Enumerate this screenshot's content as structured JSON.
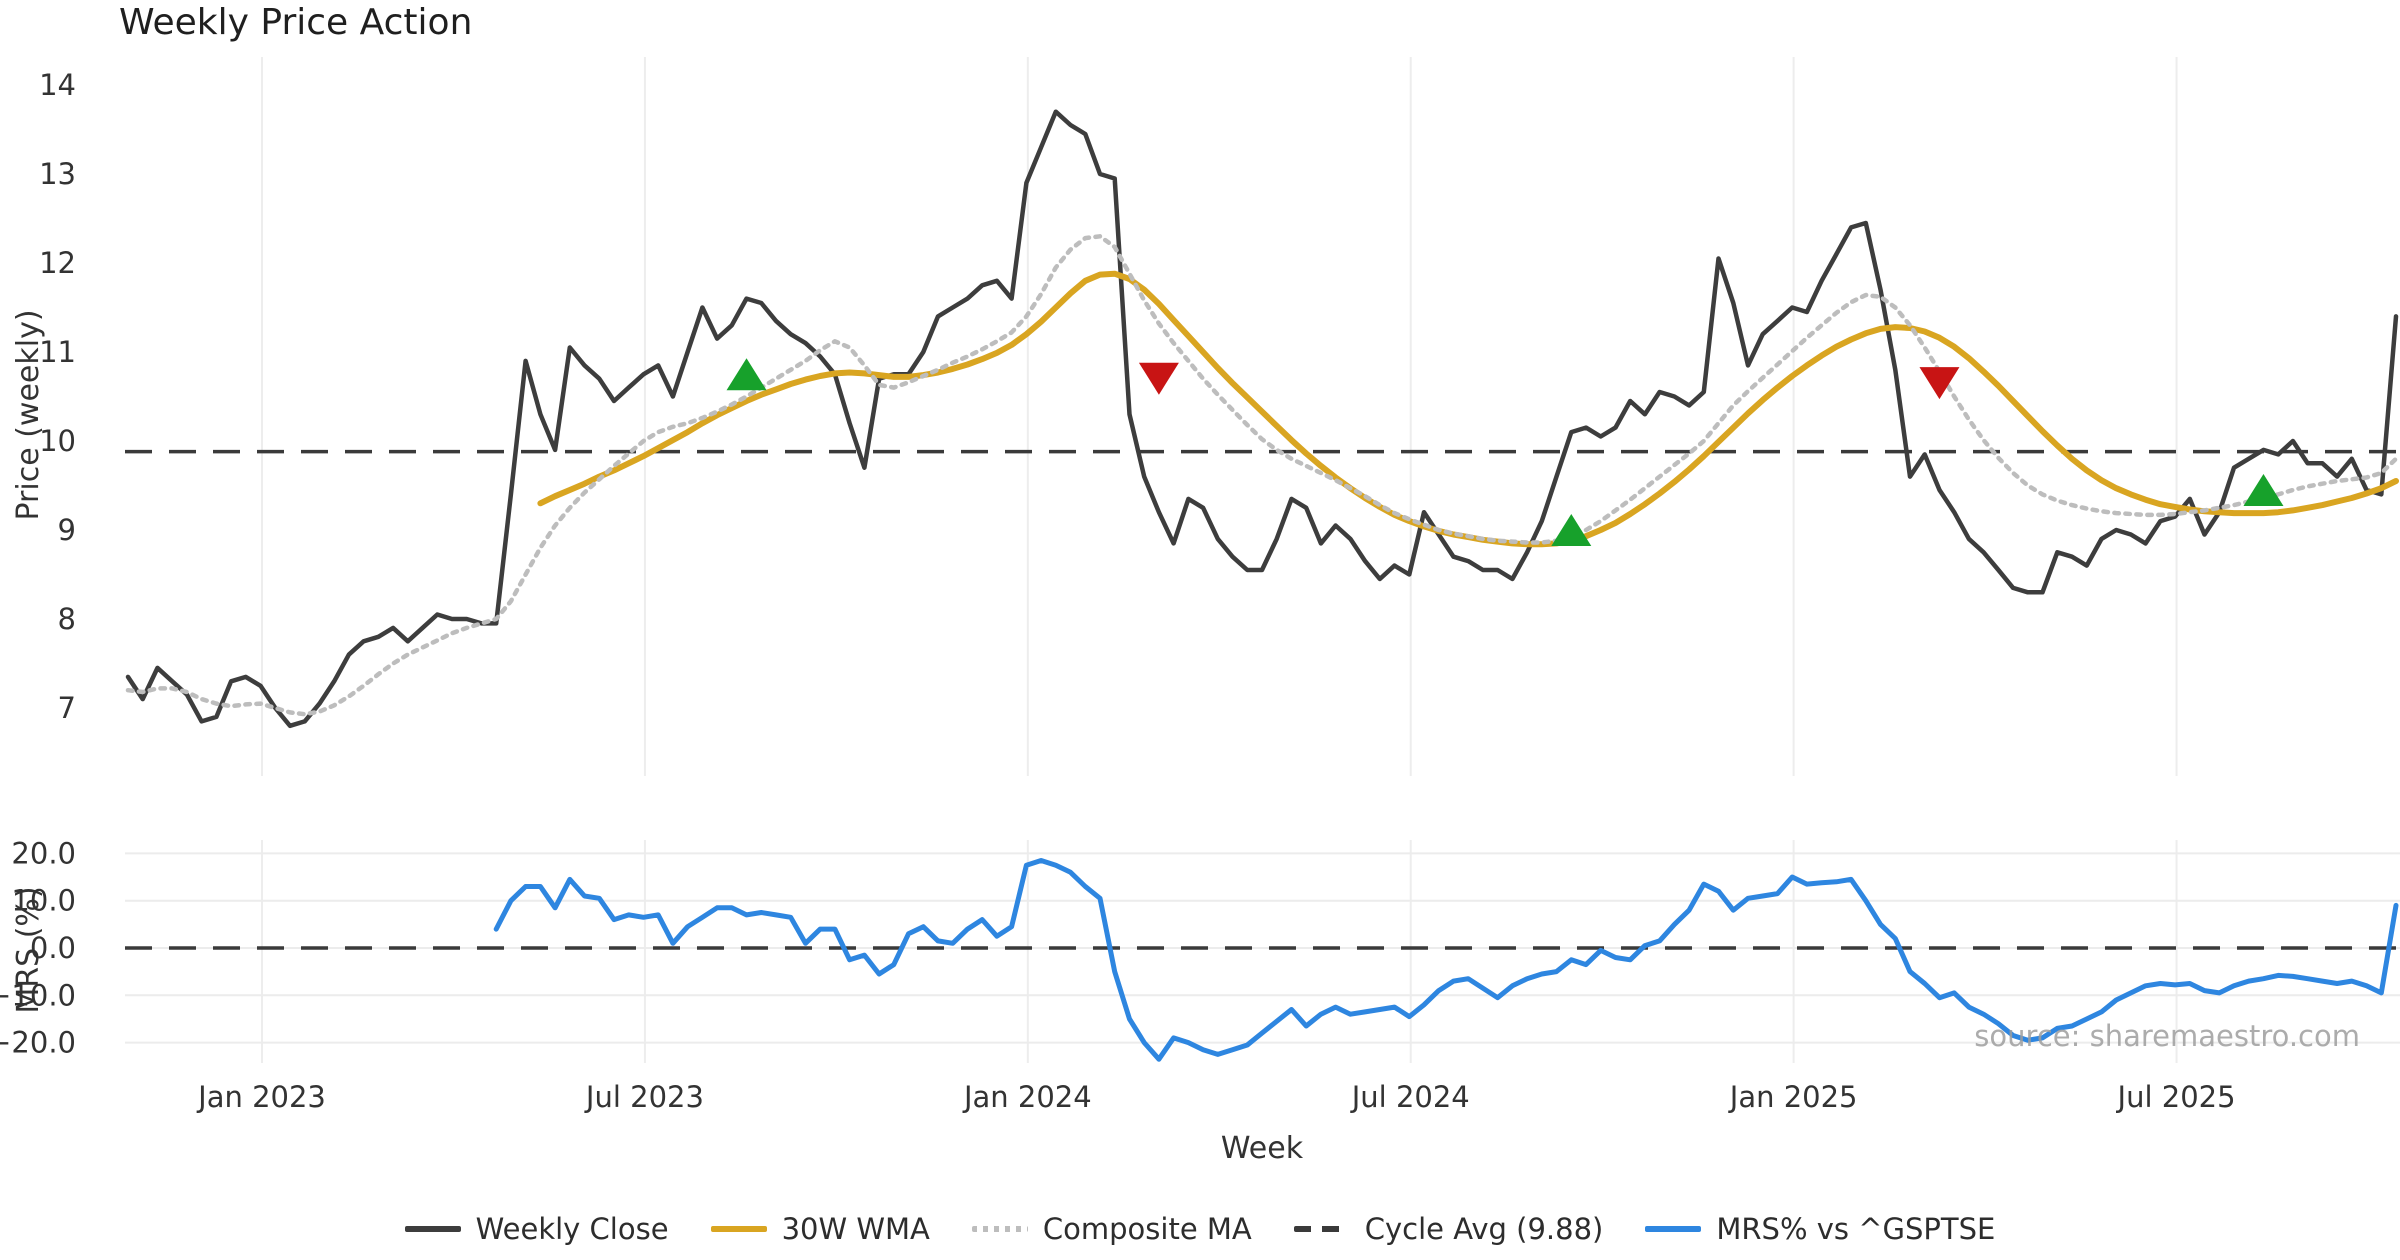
{
  "title": "Weekly Price Action",
  "xlabel": "Week",
  "watermark": "source: sharemaestro.com",
  "price_panel": {
    "ylabel": "Price (weekly)",
    "yticks": [
      14,
      13,
      12,
      11,
      10,
      9,
      8,
      7
    ],
    "cycle_avg": 9.88
  },
  "mrs_panel": {
    "ylabel": "MRS (%)",
    "ytick_labels": [
      "20.0",
      "10.0",
      "0.0",
      "−10.0",
      "−20.0"
    ],
    "ytick_values": [
      20,
      10,
      0,
      -10,
      -20
    ],
    "zero_line": 0
  },
  "xticks": [
    {
      "label": "Jan 2023",
      "week": 9.1
    },
    {
      "label": "Jul 2023",
      "week": 35.1
    },
    {
      "label": "Jan 2024",
      "week": 61.1
    },
    {
      "label": "Jul 2024",
      "week": 87.1
    },
    {
      "label": "Jan 2025",
      "week": 113.1
    },
    {
      "label": "Jul 2025",
      "week": 139.1
    }
  ],
  "legend": [
    {
      "label": "Weekly Close",
      "color": "#3d3d3d",
      "style": "solid"
    },
    {
      "label": "30W WMA",
      "color": "#d9a521",
      "style": "solid"
    },
    {
      "label": "Composite MA",
      "color": "#bdbdbd",
      "style": "dotted"
    },
    {
      "label": "Cycle Avg (9.88)",
      "color": "#3a3a3a",
      "style": "dashed"
    },
    {
      "label": "MRS% vs ^GSPTSE",
      "color": "#2e86e0",
      "style": "solid"
    }
  ],
  "chart_data": {
    "type": "line",
    "x_unit": "week_index",
    "n_weeks": 155,
    "x_range_weeks": [
      0,
      154
    ],
    "price_ylim": [
      6.5,
      14.3
    ],
    "mrs_ylim": [
      -25,
      22
    ],
    "grid": "light vertical at half-year ticks; light horizontal in MRS panel",
    "legend_position": "bottom-center",
    "series": [
      {
        "name": "Weekly Close",
        "panel": "price",
        "color": "#3d3d3d",
        "line": "solid",
        "start_week": 0,
        "values": [
          7.35,
          7.1,
          7.45,
          7.3,
          7.15,
          6.85,
          6.9,
          7.3,
          7.35,
          7.25,
          7.0,
          6.8,
          6.85,
          7.05,
          7.3,
          7.6,
          7.75,
          7.8,
          7.9,
          7.75,
          7.9,
          8.05,
          8.0,
          8.0,
          7.95,
          7.95,
          9.4,
          10.9,
          10.3,
          9.9,
          11.05,
          10.85,
          10.7,
          10.45,
          10.6,
          10.75,
          10.85,
          10.5,
          11.0,
          11.5,
          11.15,
          11.3,
          11.6,
          11.55,
          11.35,
          11.2,
          11.1,
          10.95,
          10.75,
          10.2,
          9.7,
          10.7,
          10.75,
          10.75,
          11.0,
          11.4,
          11.5,
          11.6,
          11.75,
          11.8,
          11.6,
          12.9,
          13.3,
          13.7,
          13.55,
          13.45,
          13.0,
          12.95,
          10.3,
          9.6,
          9.2,
          8.85,
          9.35,
          9.25,
          8.9,
          8.7,
          8.55,
          8.55,
          8.9,
          9.35,
          9.25,
          8.85,
          9.05,
          8.9,
          8.65,
          8.45,
          8.6,
          8.5,
          9.2,
          8.95,
          8.7,
          8.65,
          8.55,
          8.55,
          8.45,
          8.75,
          9.1,
          9.6,
          10.1,
          10.15,
          10.05,
          10.15,
          10.45,
          10.3,
          10.55,
          10.5,
          10.4,
          10.55,
          12.05,
          11.55,
          10.85,
          11.2,
          11.35,
          11.5,
          11.45,
          11.8,
          12.1,
          12.4,
          12.45,
          11.7,
          10.8,
          9.6,
          9.85,
          9.45,
          9.2,
          8.9,
          8.75,
          8.55,
          8.35,
          8.3,
          8.3,
          8.75,
          8.7,
          8.6,
          8.9,
          9.0,
          8.95,
          8.85,
          9.1,
          9.15,
          9.35,
          8.95,
          9.2,
          9.7,
          9.8,
          9.9,
          9.85,
          10.0,
          9.75,
          9.75,
          9.6,
          9.8,
          9.45,
          9.4,
          11.4
        ]
      },
      {
        "name": "30W WMA",
        "panel": "price",
        "color": "#d9a521",
        "line": "solid",
        "start_week": 28,
        "values": [
          9.3,
          9.38,
          9.45,
          9.52,
          9.6,
          9.67,
          9.75,
          9.83,
          9.92,
          10.01,
          10.1,
          10.2,
          10.29,
          10.37,
          10.45,
          10.52,
          10.58,
          10.64,
          10.69,
          10.73,
          10.76,
          10.77,
          10.76,
          10.74,
          10.72,
          10.72,
          10.74,
          10.77,
          10.81,
          10.86,
          10.92,
          10.99,
          11.08,
          11.2,
          11.34,
          11.5,
          11.66,
          11.8,
          11.87,
          11.88,
          11.82,
          11.7,
          11.54,
          11.36,
          11.18,
          11.0,
          10.82,
          10.65,
          10.49,
          10.33,
          10.17,
          10.01,
          9.86,
          9.72,
          9.59,
          9.47,
          9.36,
          9.26,
          9.17,
          9.1,
          9.04,
          8.99,
          8.95,
          8.92,
          8.89,
          8.87,
          8.85,
          8.84,
          8.84,
          8.85,
          8.88,
          8.93,
          9.0,
          9.08,
          9.18,
          9.29,
          9.41,
          9.54,
          9.68,
          9.83,
          9.99,
          10.15,
          10.31,
          10.46,
          10.6,
          10.73,
          10.85,
          10.96,
          11.06,
          11.14,
          11.21,
          11.26,
          11.28,
          11.27,
          11.23,
          11.16,
          11.06,
          10.93,
          10.78,
          10.62,
          10.45,
          10.28,
          10.11,
          9.95,
          9.8,
          9.67,
          9.56,
          9.47,
          9.4,
          9.34,
          9.29,
          9.26,
          9.23,
          9.21,
          9.2,
          9.19,
          9.19,
          9.19,
          9.2,
          9.22,
          9.25,
          9.28,
          9.32,
          9.36,
          9.41,
          9.47,
          9.55
        ]
      },
      {
        "name": "Composite MA",
        "panel": "price",
        "color": "#bdbdbd",
        "line": "dotted",
        "start_week": 0,
        "values": [
          7.2,
          7.18,
          7.22,
          7.22,
          7.18,
          7.1,
          7.05,
          7.02,
          7.04,
          7.05,
          7.0,
          6.95,
          6.93,
          6.96,
          7.03,
          7.13,
          7.25,
          7.38,
          7.5,
          7.6,
          7.68,
          7.76,
          7.84,
          7.9,
          7.95,
          8.0,
          8.2,
          8.5,
          8.8,
          9.05,
          9.25,
          9.42,
          9.57,
          9.72,
          9.86,
          10.0,
          10.1,
          10.16,
          10.2,
          10.26,
          10.33,
          10.41,
          10.5,
          10.6,
          10.7,
          10.8,
          10.9,
          11.02,
          11.12,
          11.05,
          10.85,
          10.63,
          10.6,
          10.66,
          10.73,
          10.8,
          10.88,
          10.95,
          11.03,
          11.12,
          11.22,
          11.4,
          11.65,
          11.95,
          12.15,
          12.28,
          12.3,
          12.18,
          11.88,
          11.58,
          11.32,
          11.1,
          10.9,
          10.7,
          10.52,
          10.35,
          10.18,
          10.02,
          9.9,
          9.8,
          9.72,
          9.64,
          9.56,
          9.47,
          9.38,
          9.28,
          9.19,
          9.12,
          9.06,
          9.0,
          8.96,
          8.93,
          8.9,
          8.88,
          8.87,
          8.86,
          8.86,
          8.88,
          8.93,
          9.0,
          9.1,
          9.22,
          9.34,
          9.47,
          9.6,
          9.73,
          9.86,
          10.0,
          10.2,
          10.4,
          10.56,
          10.71,
          10.86,
          11.01,
          11.16,
          11.3,
          11.44,
          11.56,
          11.64,
          11.62,
          11.5,
          11.3,
          11.05,
          10.78,
          10.5,
          10.24,
          10.01,
          9.81,
          9.64,
          9.5,
          9.4,
          9.33,
          9.28,
          9.24,
          9.21,
          9.19,
          9.18,
          9.17,
          9.17,
          9.18,
          9.2,
          9.22,
          9.25,
          9.28,
          9.32,
          9.36,
          9.4,
          9.45,
          9.49,
          9.52,
          9.55,
          9.57,
          9.59,
          9.64,
          9.8
        ]
      },
      {
        "name": "MRS% vs ^GSPTSE",
        "panel": "mrs",
        "color": "#2e86e0",
        "line": "solid",
        "start_week": 25,
        "values": [
          4.0,
          10.0,
          13.0,
          13.0,
          8.5,
          14.5,
          11.0,
          10.5,
          6.0,
          7.0,
          6.5,
          7.0,
          1.0,
          4.5,
          6.5,
          8.5,
          8.5,
          7.0,
          7.5,
          7.0,
          6.5,
          1.0,
          4.0,
          4.0,
          -2.5,
          -1.5,
          -5.5,
          -3.5,
          3.0,
          4.5,
          1.5,
          1.0,
          4.0,
          6.0,
          2.5,
          4.5,
          17.5,
          18.5,
          17.5,
          16.0,
          13.0,
          10.5,
          -5.0,
          -15.0,
          -20.0,
          -23.5,
          -19.0,
          -20.0,
          -21.5,
          -22.5,
          -21.5,
          -20.5,
          -18.0,
          -15.5,
          -13.0,
          -16.5,
          -14.0,
          -12.5,
          -14.0,
          -13.5,
          -13.0,
          -12.5,
          -14.5,
          -12.0,
          -9.0,
          -7.0,
          -6.5,
          -8.5,
          -10.5,
          -8.0,
          -6.5,
          -5.5,
          -5.0,
          -2.5,
          -3.5,
          -0.5,
          -2.0,
          -2.5,
          0.5,
          1.5,
          5.0,
          8.0,
          13.5,
          12.0,
          8.0,
          10.5,
          11.0,
          11.5,
          15.0,
          13.5,
          13.8,
          14.0,
          14.5,
          10.0,
          5.0,
          2.0,
          -5.0,
          -7.5,
          -10.5,
          -9.5,
          -12.5,
          -14.0,
          -16.0,
          -18.5,
          -19.5,
          -19.0,
          -17.0,
          -16.5,
          -15.0,
          -13.5,
          -11.0,
          -9.5,
          -8.0,
          -7.5,
          -7.8,
          -7.5,
          -9.0,
          -9.5,
          -8.0,
          -7.0,
          -6.5,
          -5.8,
          -6.0,
          -6.5,
          -7.0,
          -7.5,
          -7.0,
          -8.0,
          -9.5,
          9.0
        ]
      }
    ],
    "markers": [
      {
        "week": 42,
        "price": 10.75,
        "type": "buy"
      },
      {
        "week": 70,
        "price": 10.7,
        "type": "sell"
      },
      {
        "week": 98,
        "price": 9.0,
        "type": "buy"
      },
      {
        "week": 123,
        "price": 10.65,
        "type": "sell"
      },
      {
        "week": 145,
        "price": 9.45,
        "type": "buy"
      }
    ],
    "marker_colors": {
      "buy": "#17a12b",
      "sell": "#c81414"
    }
  }
}
